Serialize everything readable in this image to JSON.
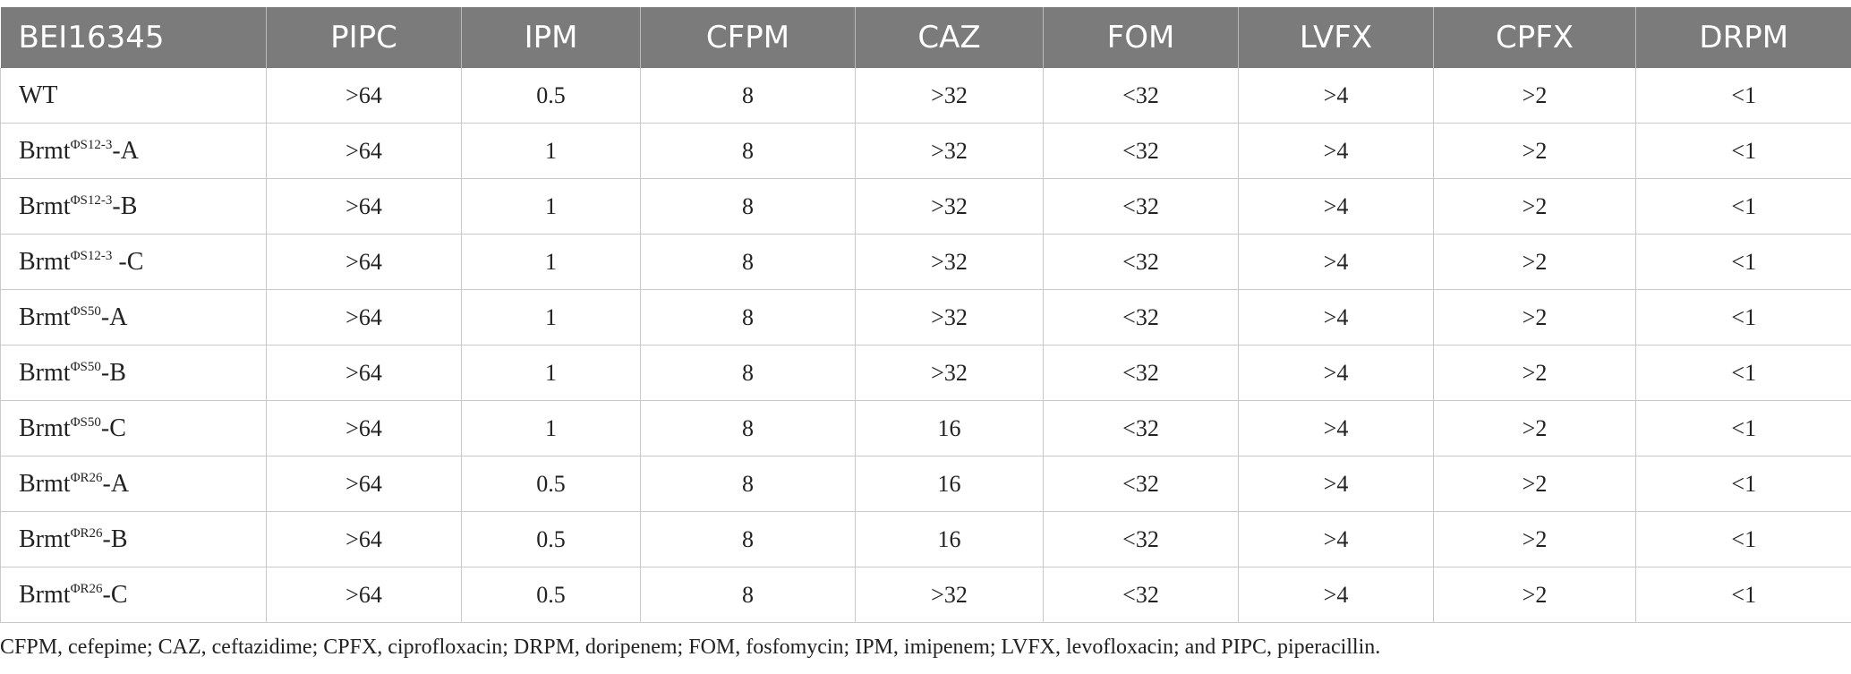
{
  "table": {
    "headers": [
      "BEI16345",
      "PIPC",
      "IPM",
      "CFPM",
      "CAZ",
      "FOM",
      "LVFX",
      "CPFX",
      "DRPM"
    ],
    "rows": [
      {
        "strain_base": "WT",
        "strain_sup": "",
        "strain_suffix": "",
        "values": [
          ">64",
          "0.5",
          "8",
          ">32",
          "<32",
          ">4",
          ">2",
          "<1"
        ]
      },
      {
        "strain_base": "Brmt",
        "strain_sup": "ΦS12-3",
        "strain_suffix": "-A",
        "values": [
          ">64",
          "1",
          "8",
          ">32",
          "<32",
          ">4",
          ">2",
          "<1"
        ]
      },
      {
        "strain_base": "Brmt",
        "strain_sup": "ΦS12-3",
        "strain_suffix": "-B",
        "values": [
          ">64",
          "1",
          "8",
          ">32",
          "<32",
          ">4",
          ">2",
          "<1"
        ]
      },
      {
        "strain_base": "Brmt",
        "strain_sup": "ΦS12-3",
        "strain_suffix": " -C",
        "values": [
          ">64",
          "1",
          "8",
          ">32",
          "<32",
          ">4",
          ">2",
          "<1"
        ]
      },
      {
        "strain_base": "Brmt",
        "strain_sup": "ΦS50",
        "strain_suffix": "-A",
        "values": [
          ">64",
          "1",
          "8",
          ">32",
          "<32",
          ">4",
          ">2",
          "<1"
        ]
      },
      {
        "strain_base": "Brmt",
        "strain_sup": "ΦS50",
        "strain_suffix": "-B",
        "values": [
          ">64",
          "1",
          "8",
          ">32",
          "<32",
          ">4",
          ">2",
          "<1"
        ]
      },
      {
        "strain_base": "Brmt",
        "strain_sup": "ΦS50",
        "strain_suffix": "-C",
        "values": [
          ">64",
          "1",
          "8",
          "16",
          "<32",
          ">4",
          ">2",
          "<1"
        ]
      },
      {
        "strain_base": "Brmt",
        "strain_sup": "ΦR26",
        "strain_suffix": "-A",
        "values": [
          ">64",
          "0.5",
          "8",
          "16",
          "<32",
          ">4",
          ">2",
          "<1"
        ]
      },
      {
        "strain_base": "Brmt",
        "strain_sup": "ΦR26",
        "strain_suffix": "-B",
        "values": [
          ">64",
          "0.5",
          "8",
          "16",
          "<32",
          ">4",
          ">2",
          "<1"
        ]
      },
      {
        "strain_base": "Brmt",
        "strain_sup": "ΦR26",
        "strain_suffix": "-C",
        "values": [
          ">64",
          "0.5",
          "8",
          ">32",
          "<32",
          ">4",
          ">2",
          "<1"
        ]
      }
    ]
  },
  "footnote": "CFPM, cefepime; CAZ, ceftazidime; CPFX, ciprofloxacin; DRPM, doripenem; FOM, fosfomycin; IPM, imipenem; LVFX, levofloxacin; and PIPC, piperacillin.",
  "colors": {
    "header_bg": "#7b7b7b",
    "header_text": "#ffffff",
    "grid": "#c9c9c9"
  }
}
